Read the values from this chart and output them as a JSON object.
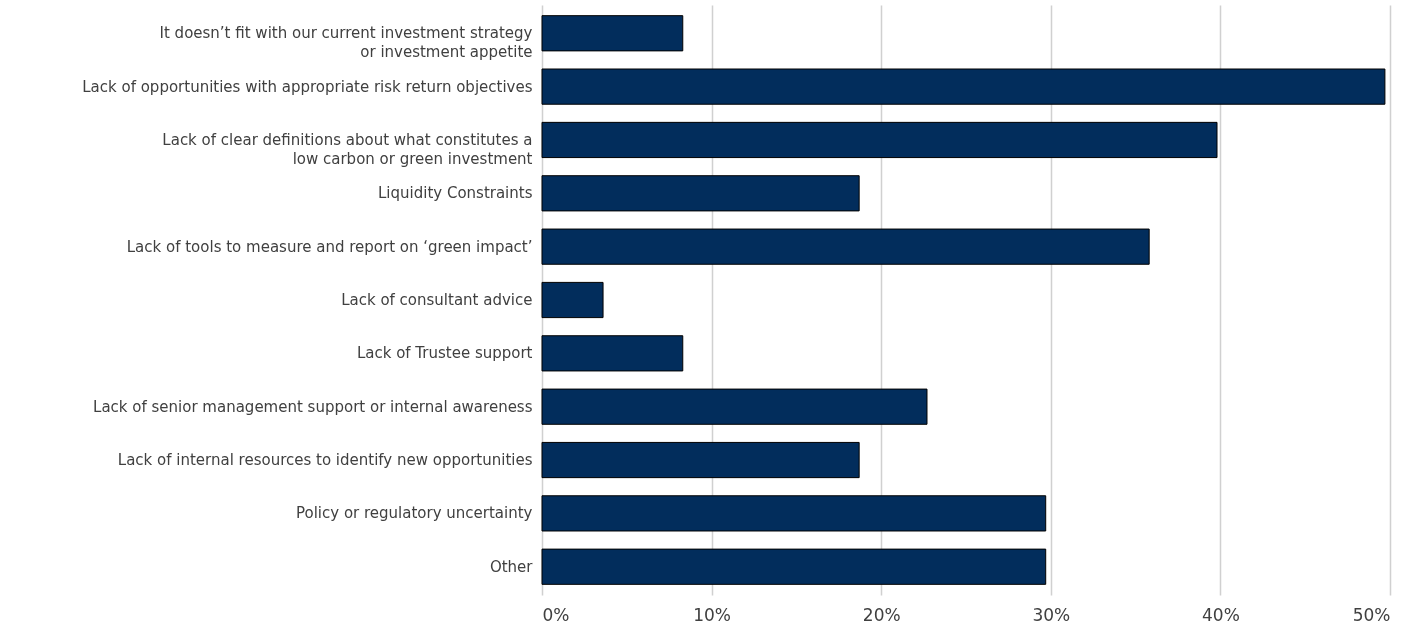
{
  "chart_data": {
    "type": "bar",
    "orientation": "horizontal",
    "categories": [
      "It doesn’t fit with our current investment strategy or investment appetite",
      "Lack of opportunities with appropriate risk return objectives",
      "Lack of clear definitions about what constitutes a low carbon or green investment",
      "Liquidity Constraints",
      "Lack of tools to measure and report on ‘green impact’",
      "Lack of consultant advice",
      "Lack of Trustee support",
      "Lack of senior management support or internal awareness",
      "Lack of internal resources to identify new opportunities",
      "Policy or regulatory uncertainty",
      "Other"
    ],
    "values": [
      8.3,
      49.7,
      39.8,
      18.7,
      35.8,
      3.6,
      8.3,
      22.7,
      18.7,
      29.7,
      29.7
    ],
    "color": "#022d5c",
    "xlim": [
      0,
      50
    ],
    "xticks": [
      {
        "value": 0,
        "label": "0%"
      },
      {
        "value": 10,
        "label": "10%"
      },
      {
        "value": 20,
        "label": "20%"
      },
      {
        "value": 30,
        "label": "30%"
      },
      {
        "value": 40,
        "label": "40%"
      },
      {
        "value": 50,
        "label": "50%"
      }
    ],
    "grid": "x"
  }
}
